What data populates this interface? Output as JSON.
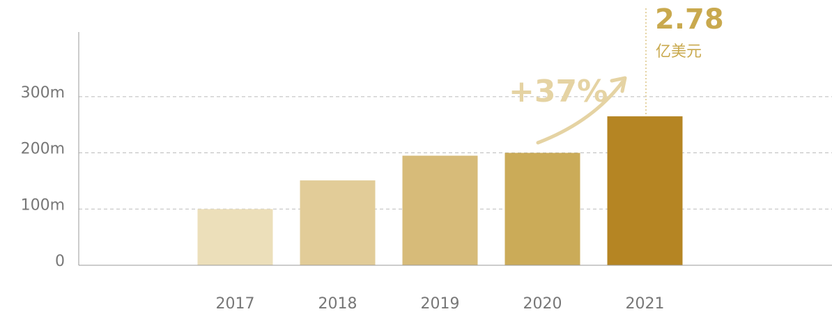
{
  "chart_data": {
    "type": "bar",
    "categories": [
      "2017",
      "2018",
      "2019",
      "2020",
      "2021"
    ],
    "values": [
      100,
      151,
      195,
      200,
      265
    ],
    "colors": [
      "#ecdfba",
      "#e2cc98",
      "#d7bb79",
      "#cbab58",
      "#b58523"
    ],
    "ylim": [
      0,
      415
    ],
    "yticks": [
      0,
      {
        "value": 100,
        "label": "100m"
      },
      {
        "value": 200,
        "label": "200m"
      },
      {
        "value": 300,
        "label": "300m"
      }
    ],
    "grid": true,
    "annotations": {
      "growth": "+37%",
      "total": "2.78",
      "unit": "亿美元"
    }
  }
}
